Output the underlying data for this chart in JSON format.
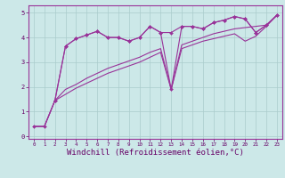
{
  "background_color": "#cce8e8",
  "grid_color": "#aacccc",
  "line_color": "#993399",
  "xlabel": "Windchill (Refroidissement éolien,°C)",
  "xlabel_fontsize": 6.5,
  "ytick_labels": [
    "0",
    "1",
    "2",
    "3",
    "4",
    "5"
  ],
  "xtick_labels": [
    "0",
    "1",
    "2",
    "3",
    "4",
    "5",
    "6",
    "7",
    "8",
    "9",
    "10",
    "11",
    "12",
    "13",
    "14",
    "15",
    "16",
    "17",
    "18",
    "19",
    "20",
    "21",
    "22",
    "23"
  ],
  "xlim": [
    -0.5,
    23.5
  ],
  "ylim": [
    -0.1,
    5.3
  ],
  "series": [
    {
      "x": [
        0,
        1,
        2,
        3,
        4,
        5,
        6,
        7,
        8,
        9,
        10,
        11,
        12,
        13,
        14,
        15,
        16,
        17,
        18,
        19,
        20,
        21,
        22,
        23
      ],
      "y": [
        0.4,
        0.4,
        1.45,
        3.65,
        3.95,
        4.1,
        4.25,
        4.0,
        4.0,
        3.85,
        4.0,
        4.45,
        4.2,
        4.2,
        4.45,
        4.45,
        4.35,
        4.6,
        4.7,
        4.85,
        4.75,
        4.2,
        4.5,
        4.9
      ],
      "marker": "D",
      "markersize": 2.0,
      "linewidth": 0.8
    },
    {
      "x": [
        0,
        1,
        2,
        3,
        4,
        5,
        6,
        7,
        8,
        9,
        10,
        11,
        12,
        13,
        14,
        15,
        16,
        17,
        18,
        19,
        20,
        21,
        22,
        23
      ],
      "y": [
        0.4,
        0.4,
        1.45,
        1.9,
        2.1,
        2.35,
        2.55,
        2.75,
        2.9,
        3.05,
        3.2,
        3.4,
        3.55,
        1.9,
        3.7,
        3.85,
        4.0,
        4.15,
        4.25,
        4.35,
        4.4,
        4.45,
        4.5,
        4.9
      ],
      "marker": null,
      "markersize": 0,
      "linewidth": 0.8
    },
    {
      "x": [
        0,
        1,
        2,
        3,
        4,
        5,
        6,
        7,
        8,
        9,
        10,
        11,
        12,
        13,
        14,
        15,
        16,
        17,
        18,
        19,
        20,
        21,
        22,
        23
      ],
      "y": [
        0.4,
        0.4,
        1.45,
        1.7,
        1.95,
        2.15,
        2.35,
        2.55,
        2.7,
        2.85,
        3.0,
        3.2,
        3.4,
        1.9,
        3.55,
        3.7,
        3.85,
        3.95,
        4.05,
        4.15,
        3.85,
        4.05,
        4.45,
        4.9
      ],
      "marker": null,
      "markersize": 0,
      "linewidth": 0.8
    },
    {
      "x": [
        2,
        3,
        4,
        5,
        6,
        7,
        8,
        9,
        10,
        11,
        12,
        13,
        14,
        15,
        16,
        17,
        18,
        19,
        20,
        21,
        22,
        23
      ],
      "y": [
        1.45,
        3.65,
        3.95,
        4.1,
        4.25,
        4.0,
        4.0,
        3.85,
        4.0,
        4.45,
        4.2,
        1.9,
        4.45,
        4.45,
        4.35,
        4.6,
        4.7,
        4.85,
        4.75,
        4.2,
        4.5,
        4.9
      ],
      "marker": "D",
      "markersize": 2.0,
      "linewidth": 0.8
    }
  ]
}
